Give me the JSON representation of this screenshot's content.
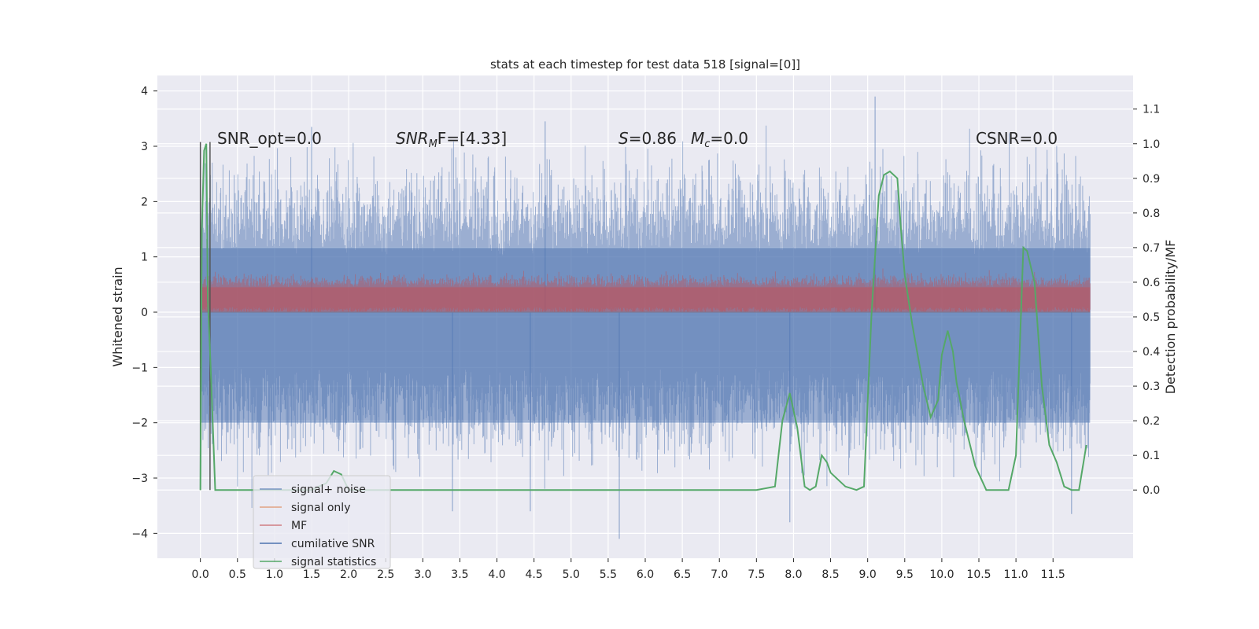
{
  "chart_data": {
    "type": "line",
    "title": "stats at each timestep for test data 518 [signal=[0]]",
    "xlabel": "",
    "ylabel": "Whitened strain",
    "y2label": "Detection probability/MF",
    "xlim": [
      -0.58,
      12.58
    ],
    "ylim": [
      -4.45,
      4.28
    ],
    "y2lim": [
      -0.197,
      1.197
    ],
    "x_ticks": [
      "0.0",
      "0.5",
      "1.0",
      "1.5",
      "2.0",
      "2.5",
      "3.0",
      "3.5",
      "4.0",
      "4.5",
      "5.0",
      "5.5",
      "6.0",
      "6.5",
      "7.0",
      "7.5",
      "8.0",
      "8.5",
      "9.0",
      "9.5",
      "10.0",
      "10.5",
      "11.0",
      "11.5"
    ],
    "y_ticks": [
      "4",
      "3",
      "2",
      "1",
      "0",
      "−1",
      "−2",
      "−3",
      "−4"
    ],
    "y2_ticks": [
      "1.1",
      "1.0",
      "0.9",
      "0.8",
      "0.7",
      "0.6",
      "0.5",
      "0.4",
      "0.3",
      "0.2",
      "0.1",
      "0.0"
    ],
    "grid": true,
    "legend_position": "lower-left",
    "annotations": {
      "snr_opt": "SNR_opt=0.0",
      "snr_mf_sym": "SNR",
      "snr_mf_sub": "M",
      "snr_mf_rest": "F=[4.33]",
      "s_sym": "S",
      "s_val": "=0.86",
      "mc_sym": "M",
      "mc_sub": "c",
      "mc_val": "=0.0",
      "csnr": "CSNR=0.0"
    },
    "series": [
      {
        "name": "signal+ noise",
        "color": "#4c72b0",
        "style": "dense noise band",
        "x_range": [
          0.0,
          12.0
        ],
        "typical_range": [
          -2.0,
          2.0
        ],
        "max": 3.9,
        "min": -4.1
      },
      {
        "name": "signal only",
        "color": "#dd8452",
        "style": "flat",
        "x_range": [
          0.0,
          12.0
        ],
        "value": 0.0
      },
      {
        "name": "MF",
        "color": "#c44e52",
        "style": "dense noise band",
        "x_range": [
          0.0,
          12.0
        ],
        "typical_range": [
          0.0,
          0.5
        ],
        "max": 1.0
      },
      {
        "name": "cumilative SNR",
        "color": "#4c72b0",
        "style": "flat",
        "x_range": [
          0.0,
          12.0
        ],
        "value": 0.0
      },
      {
        "name": "signal statistics",
        "color": "#55a868",
        "axis": "right",
        "x": [
          0.0,
          0.02,
          0.05,
          0.08,
          0.1,
          0.14,
          0.2,
          0.25,
          0.3,
          0.5,
          1.0,
          1.5,
          1.7,
          1.8,
          1.9,
          2.0,
          2.3,
          3.0,
          4.0,
          4.5,
          5.0,
          6.0,
          6.5,
          7.0,
          7.5,
          7.75,
          7.85,
          7.95,
          8.05,
          8.15,
          8.22,
          8.3,
          8.38,
          8.45,
          8.5,
          8.7,
          8.85,
          8.95,
          9.05,
          9.15,
          9.22,
          9.3,
          9.4,
          9.45,
          9.5,
          9.6,
          9.75,
          9.85,
          9.95,
          10.0,
          10.08,
          10.15,
          10.2,
          10.3,
          10.45,
          10.6,
          10.75,
          10.9,
          11.0,
          11.1,
          11.15,
          11.25,
          11.35,
          11.45,
          11.55,
          11.65,
          11.75,
          11.85,
          11.95
        ],
        "values": [
          0.0,
          0.75,
          0.98,
          1.0,
          0.55,
          0.35,
          0.0,
          0.0,
          0.0,
          0.0,
          0.0,
          0.0,
          0.02,
          0.055,
          0.045,
          0.0,
          0.0,
          0.0,
          0.0,
          0.0,
          0.0,
          0.0,
          0.0,
          0.0,
          0.0,
          0.01,
          0.2,
          0.28,
          0.18,
          0.01,
          0.0,
          0.01,
          0.1,
          0.08,
          0.05,
          0.01,
          0.0,
          0.01,
          0.5,
          0.85,
          0.91,
          0.92,
          0.9,
          0.75,
          0.62,
          0.48,
          0.3,
          0.21,
          0.26,
          0.39,
          0.46,
          0.4,
          0.31,
          0.2,
          0.07,
          0.0,
          0.0,
          0.0,
          0.1,
          0.7,
          0.69,
          0.6,
          0.3,
          0.13,
          0.08,
          0.01,
          0.0,
          0.0,
          0.13
        ]
      }
    ],
    "vertical_lines": [
      0.0,
      0.13
    ]
  }
}
